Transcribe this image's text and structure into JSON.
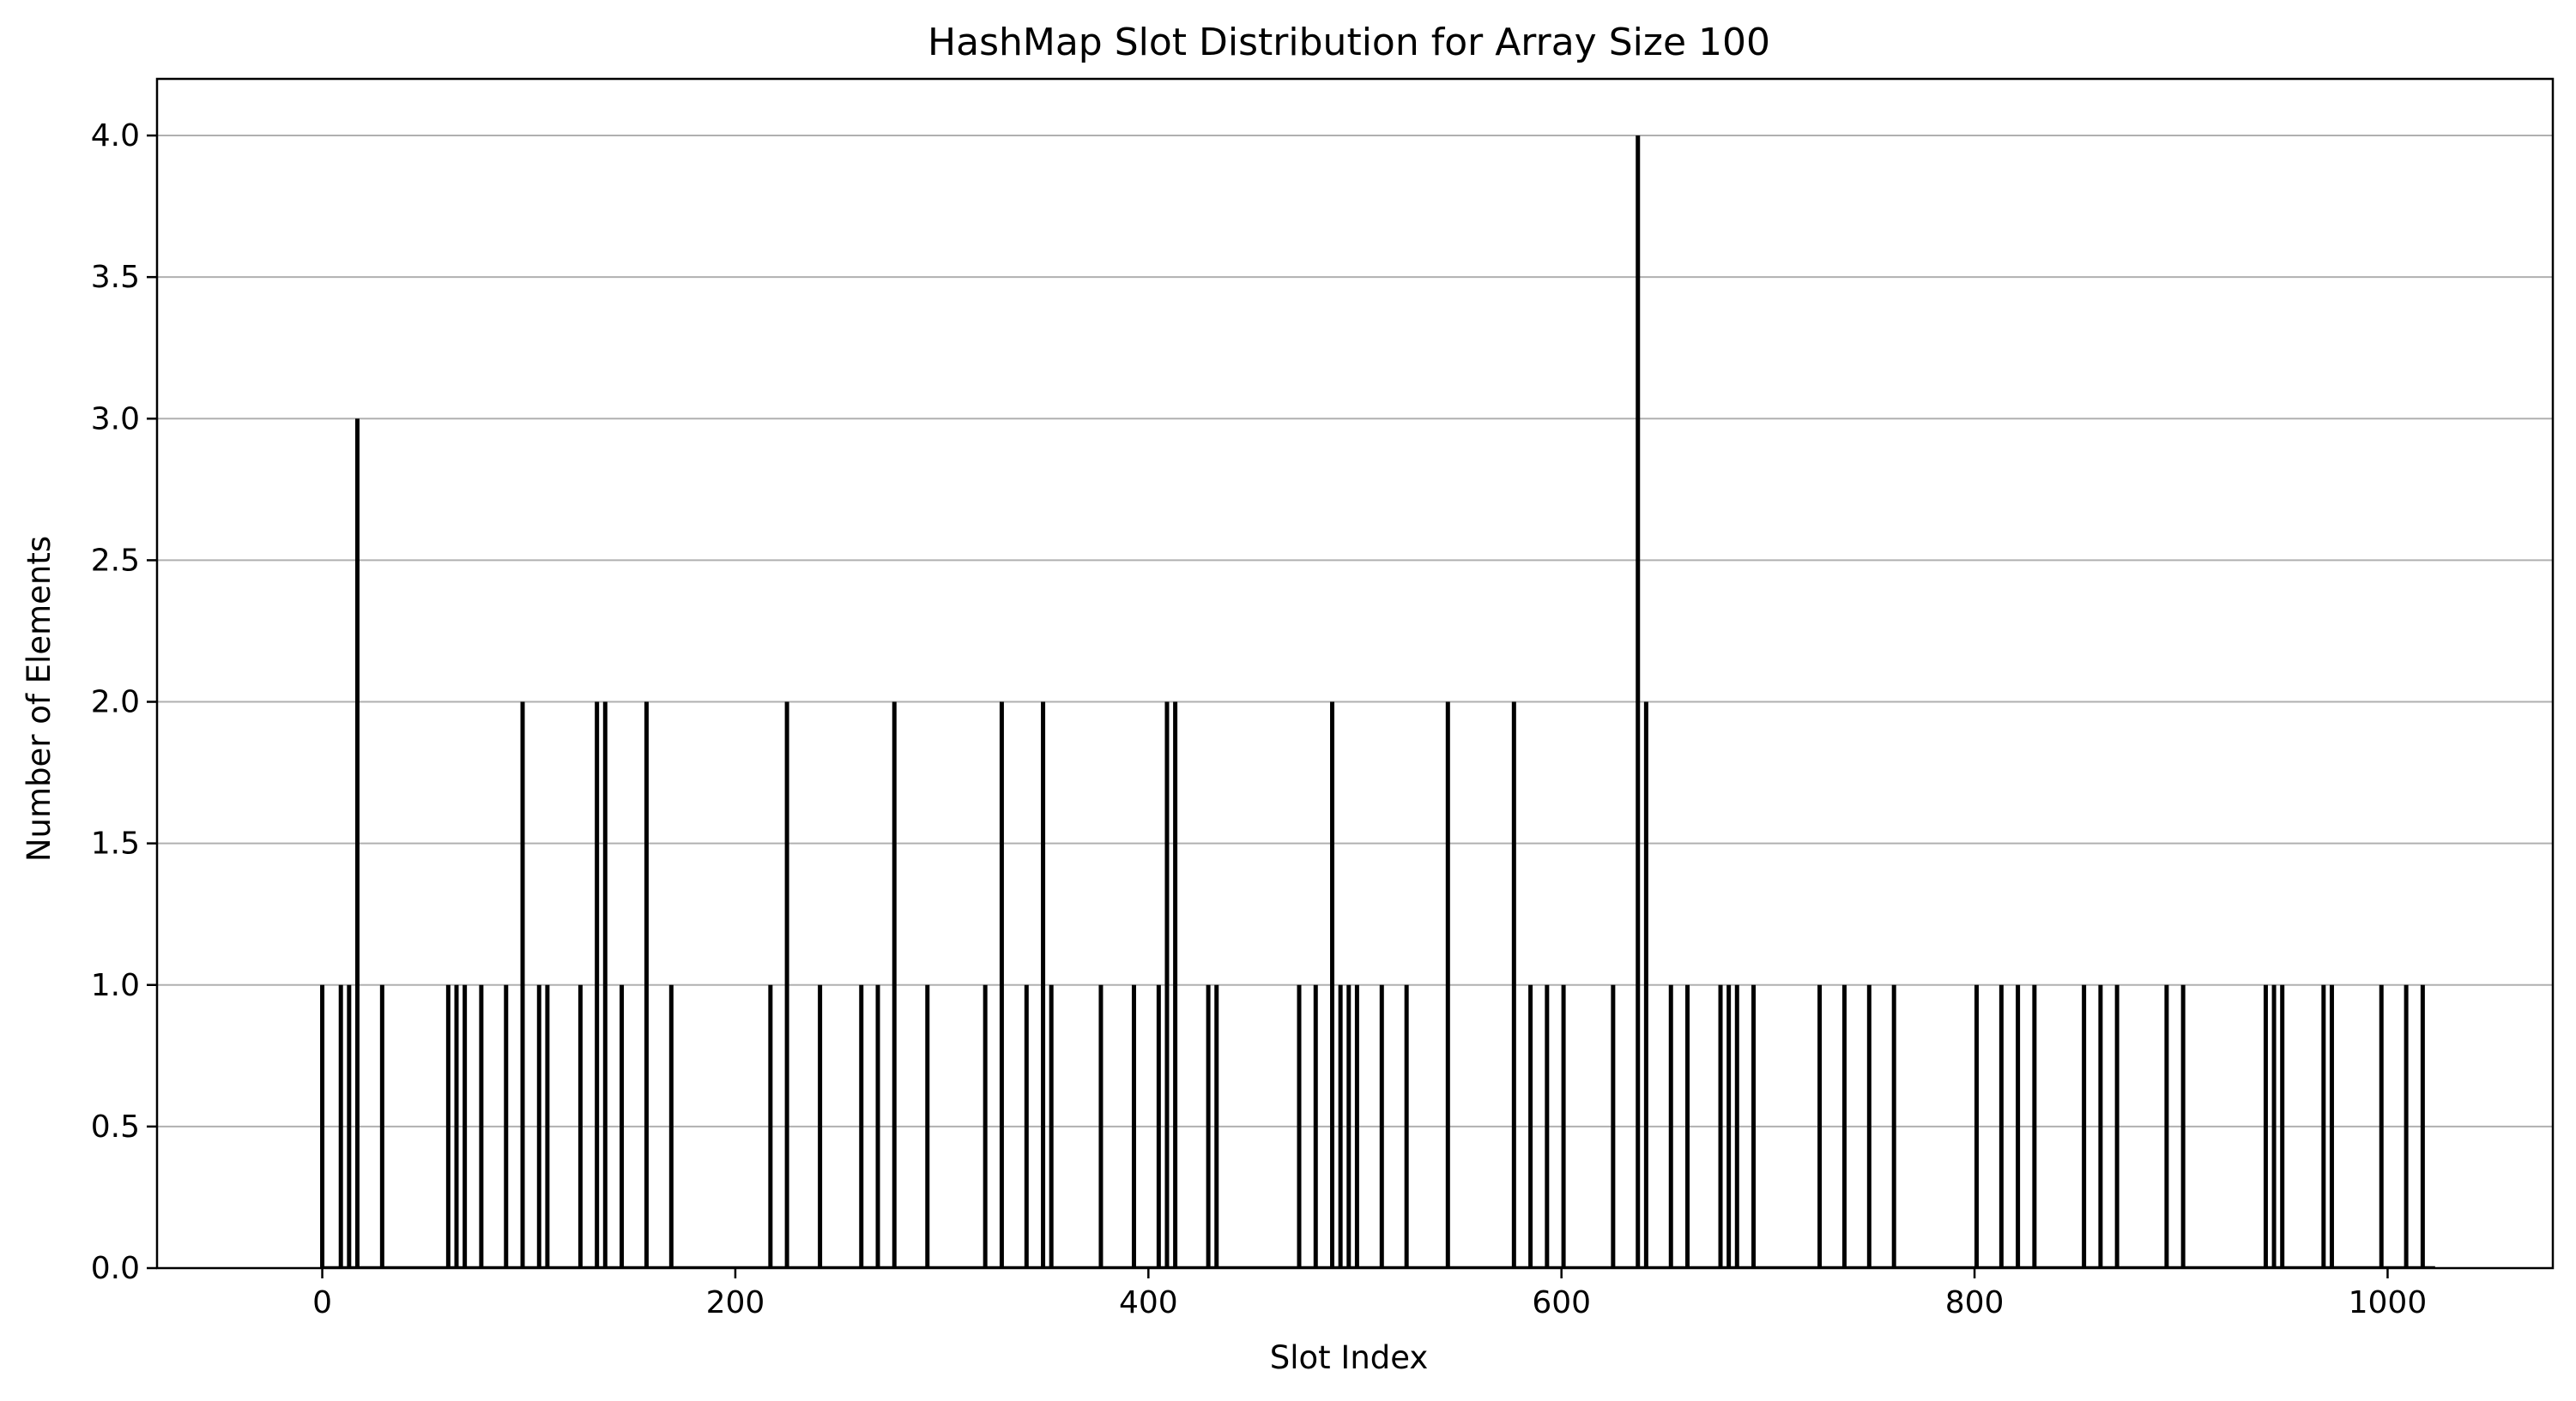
{
  "chart_data": {
    "type": "bar",
    "title": "HashMap Slot Distribution for Array Size 100",
    "xlabel": "Slot Index",
    "ylabel": "Number of Elements",
    "xlim": [
      -80,
      1080
    ],
    "ylim": [
      0,
      4.2
    ],
    "xticks": [
      0,
      200,
      400,
      600,
      800,
      1000
    ],
    "xtick_labels": [
      "0",
      "200",
      "400",
      "600",
      "800",
      "1000"
    ],
    "yticks": [
      0.0,
      0.5,
      1.0,
      1.5,
      2.0,
      2.5,
      3.0,
      3.5,
      4.0
    ],
    "ytick_labels": [
      "0.0",
      "0.5",
      "1.0",
      "1.5",
      "2.0",
      "2.5",
      "3.0",
      "3.5",
      "4.0"
    ],
    "grid": "y-major",
    "bar_color": "#000000",
    "grid_color": "#b0b0b0",
    "x_range": [
      0,
      1023
    ],
    "x": [
      0,
      9,
      13,
      17,
      29,
      61,
      65,
      69,
      77,
      89,
      97,
      105,
      109,
      125,
      133,
      137,
      145,
      157,
      169,
      217,
      225,
      241,
      261,
      269,
      277,
      293,
      321,
      329,
      341,
      349,
      353,
      377,
      393,
      405,
      409,
      413,
      429,
      433,
      473,
      481,
      489,
      493,
      497,
      501,
      513,
      525,
      545,
      577,
      585,
      593,
      601,
      625,
      637,
      641,
      653,
      661,
      677,
      681,
      685,
      693,
      725,
      737,
      749,
      761,
      801,
      813,
      821,
      829,
      853,
      861,
      869,
      893,
      901,
      941,
      945,
      949,
      969,
      973,
      997,
      1009,
      1017
    ],
    "values": [
      1,
      1,
      1,
      3,
      1,
      1,
      1,
      1,
      1,
      1,
      2,
      1,
      1,
      1,
      2,
      2,
      1,
      2,
      1,
      1,
      2,
      1,
      1,
      1,
      2,
      1,
      1,
      2,
      1,
      2,
      1,
      1,
      1,
      1,
      2,
      2,
      1,
      1,
      1,
      1,
      2,
      1,
      1,
      1,
      1,
      1,
      2,
      2,
      1,
      1,
      1,
      1,
      4,
      2,
      1,
      1,
      1,
      1,
      1,
      1,
      1,
      1,
      1,
      1,
      1,
      1,
      1,
      1,
      1,
      1,
      1,
      1,
      1,
      1,
      1,
      1,
      1,
      1,
      1,
      1,
      1
    ]
  }
}
